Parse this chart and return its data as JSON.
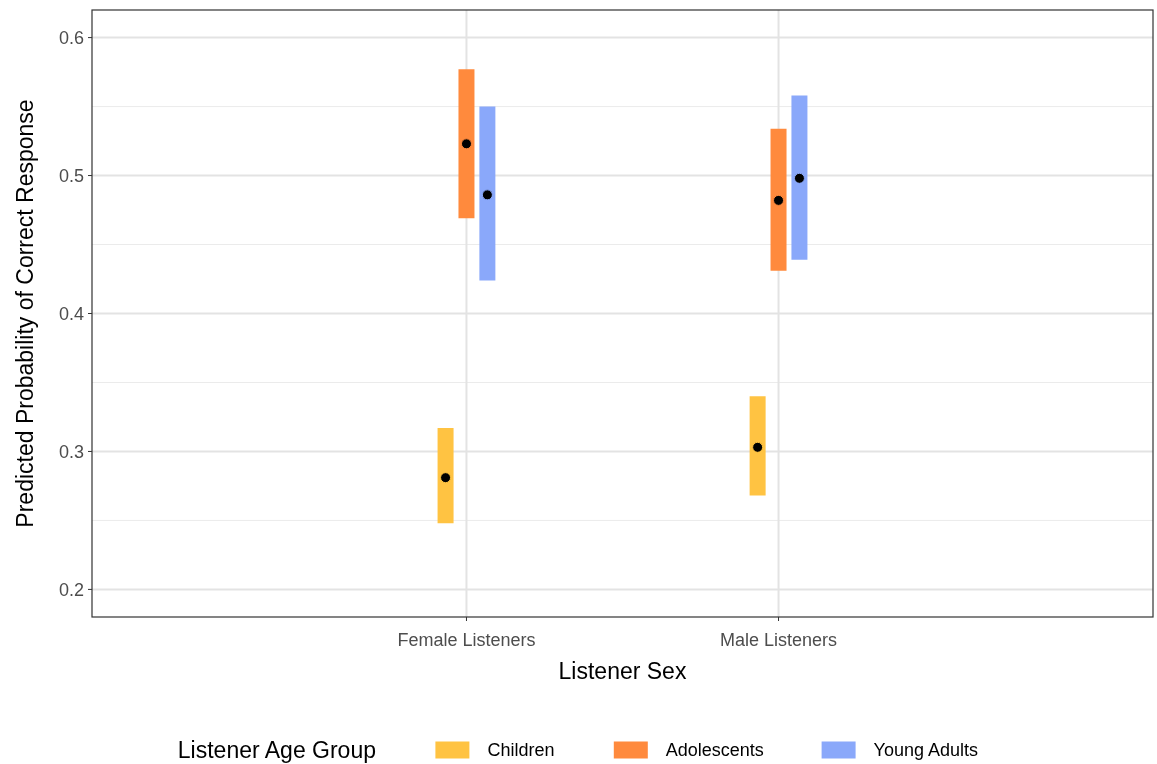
{
  "chart_data": {
    "type": "scatter",
    "xlabel": "Listener Sex",
    "ylabel": "Predicted Probability of Correct Response",
    "legend_title": "Listener Age Group",
    "categories": [
      "Female Listeners",
      "Male Listeners"
    ],
    "series": [
      {
        "name": "Children",
        "color": "#ffc342",
        "values": [
          0.281,
          0.303
        ],
        "errors": [
          [
            0.248,
            0.317
          ],
          [
            0.268,
            0.34
          ]
        ]
      },
      {
        "name": "Adolescents",
        "color": "#ff8a3d",
        "values": [
          0.523,
          0.482
        ],
        "errors": [
          [
            0.469,
            0.577
          ],
          [
            0.431,
            0.534
          ]
        ]
      },
      {
        "name": "Young Adults",
        "color": "#8aa8fa",
        "values": [
          0.486,
          0.498
        ],
        "errors": [
          [
            0.424,
            0.55
          ],
          [
            0.439,
            0.558
          ]
        ]
      }
    ],
    "ylim": [
      0.18,
      0.62
    ],
    "yticks": [
      {
        "value": 0.2,
        "label": "0.2"
      },
      {
        "value": 0.3,
        "label": "0.3"
      },
      {
        "value": 0.4,
        "label": "0.4"
      },
      {
        "value": 0.5,
        "label": "0.5"
      },
      {
        "value": 0.6,
        "label": "0.6"
      }
    ],
    "grid": true,
    "legend": "bottom",
    "marker": "circle"
  }
}
